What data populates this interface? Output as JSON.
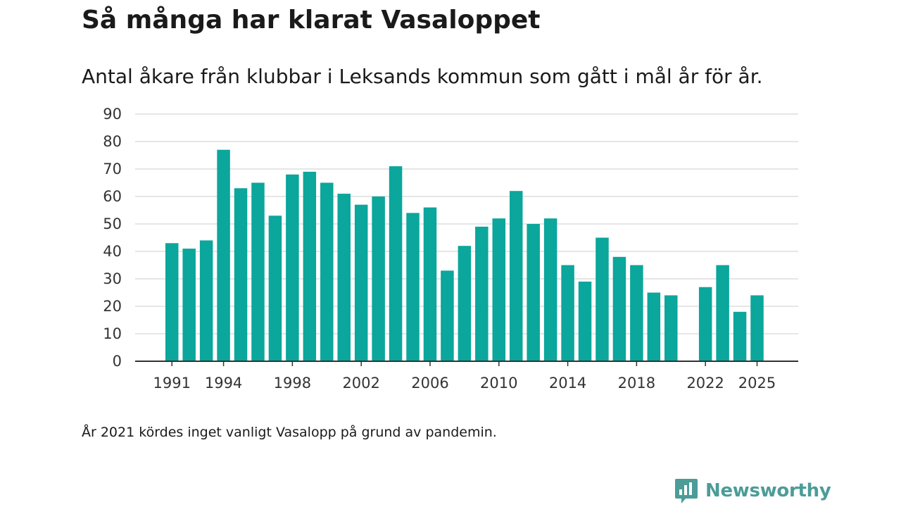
{
  "title": "Så många har klarat Vasaloppet",
  "subtitle": "Antal åkare från klubbar i Leksands kommun som gått i mål år för år.",
  "footnote": "År 2021 kördes inget vanligt Vasalopp på grund av pandemin.",
  "brand": {
    "name": "Newsworthy",
    "icon": "newsworthy-logo-icon"
  },
  "colors": {
    "bar": "#0ba69c",
    "grid": "#dddddd",
    "axis": "#333333",
    "brand": "#4c9c98"
  },
  "chart_data": {
    "type": "bar",
    "title": "Så många har klarat Vasaloppet",
    "subtitle": "Antal åkare från klubbar i Leksands kommun som gått i mål år för år.",
    "xlabel": "",
    "ylabel": "",
    "ylim": [
      0,
      90
    ],
    "yticks": [
      0,
      10,
      20,
      30,
      40,
      50,
      60,
      70,
      80,
      90
    ],
    "xtick_labels": [
      "1991",
      "1994",
      "1998",
      "2002",
      "2006",
      "2010",
      "2014",
      "2018",
      "2022",
      "2025"
    ],
    "grid": true,
    "categories": [
      "1991",
      "1992",
      "1993",
      "1994",
      "1995",
      "1996",
      "1997",
      "1998",
      "1999",
      "2000",
      "2001",
      "2002",
      "2003",
      "2004",
      "2005",
      "2006",
      "2007",
      "2008",
      "2009",
      "2010",
      "2011",
      "2012",
      "2013",
      "2014",
      "2015",
      "2016",
      "2017",
      "2018",
      "2019",
      "2020",
      "2021",
      "2022",
      "2023",
      "2024",
      "2025"
    ],
    "values": [
      43,
      41,
      44,
      77,
      63,
      65,
      53,
      68,
      69,
      65,
      61,
      57,
      60,
      71,
      54,
      56,
      33,
      42,
      49,
      52,
      62,
      50,
      52,
      35,
      29,
      45,
      38,
      35,
      25,
      24,
      null,
      27,
      35,
      18,
      24
    ]
  }
}
